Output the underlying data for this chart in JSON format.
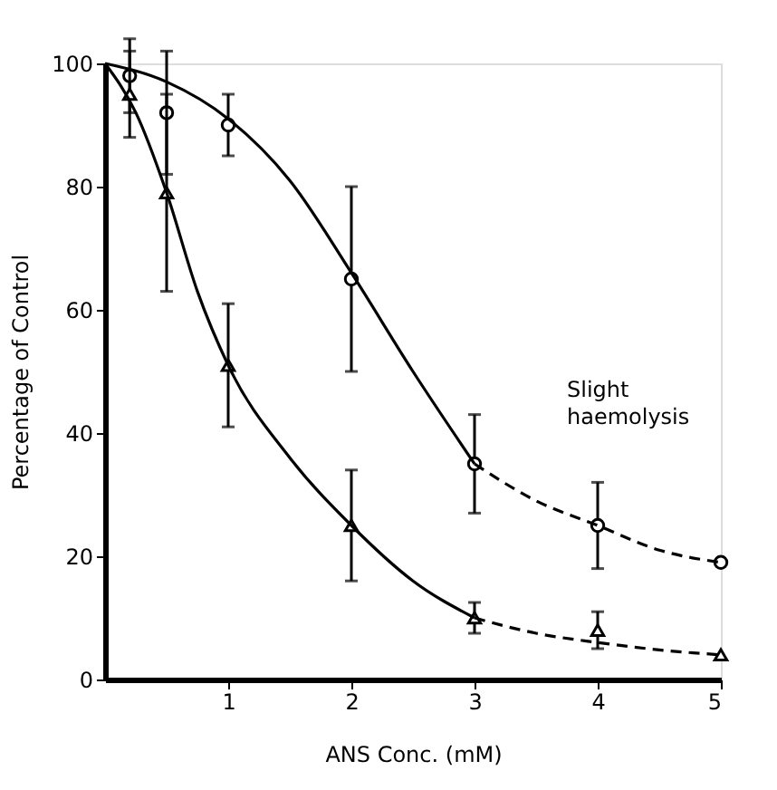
{
  "chart_data": {
    "type": "scatter",
    "xlabel": "ANS  Conc. (mM)",
    "ylabel": "Percentage of Control",
    "xlim": [
      0,
      5
    ],
    "ylim": [
      0,
      100
    ],
    "xticks": [
      1,
      2,
      3,
      4,
      5
    ],
    "yticks": [
      0,
      20,
      40,
      60,
      80,
      100
    ],
    "grid": false,
    "annotations": [
      "Slight\nhaemolysis"
    ],
    "series": [
      {
        "marker": "circle",
        "color": "#000000",
        "x": [
          0.2,
          0.5,
          1,
          2,
          3,
          4,
          5
        ],
        "values": [
          98,
          92,
          90,
          65,
          35,
          25,
          19
        ],
        "errors": [
          6,
          10,
          5,
          15,
          8,
          7,
          null
        ]
      },
      {
        "marker": "triangle",
        "color": "#000000",
        "x": [
          0.2,
          0.5,
          1,
          2,
          3,
          4,
          5
        ],
        "values": [
          95,
          79,
          51,
          25,
          10,
          8,
          4
        ],
        "errors": [
          7,
          16,
          10,
          9,
          2.5,
          3,
          null
        ]
      },
      {
        "type": "line",
        "marker": "none",
        "line_style": "solid",
        "color": "#000000",
        "x": [
          0,
          0.5,
          1,
          1.5,
          2,
          2.5,
          3
        ],
        "values": [
          100,
          97,
          91,
          81,
          66,
          50,
          35
        ]
      },
      {
        "type": "line",
        "marker": "none",
        "line_style": "dashed",
        "color": "#000000",
        "x": [
          3,
          3.5,
          4,
          4.5,
          5
        ],
        "values": [
          35,
          29,
          25,
          21,
          19
        ]
      },
      {
        "type": "line",
        "marker": "none",
        "line_style": "solid",
        "color": "#000000",
        "x": [
          0,
          0.25,
          0.5,
          0.75,
          1,
          1.5,
          2,
          2.5,
          3
        ],
        "values": [
          100,
          92,
          79,
          63,
          51,
          36,
          25,
          16,
          10
        ]
      },
      {
        "type": "line",
        "marker": "none",
        "line_style": "dashed",
        "color": "#000000",
        "x": [
          3,
          3.5,
          4,
          4.5,
          5
        ],
        "values": [
          10,
          7.5,
          6,
          4.8,
          4
        ]
      }
    ]
  }
}
